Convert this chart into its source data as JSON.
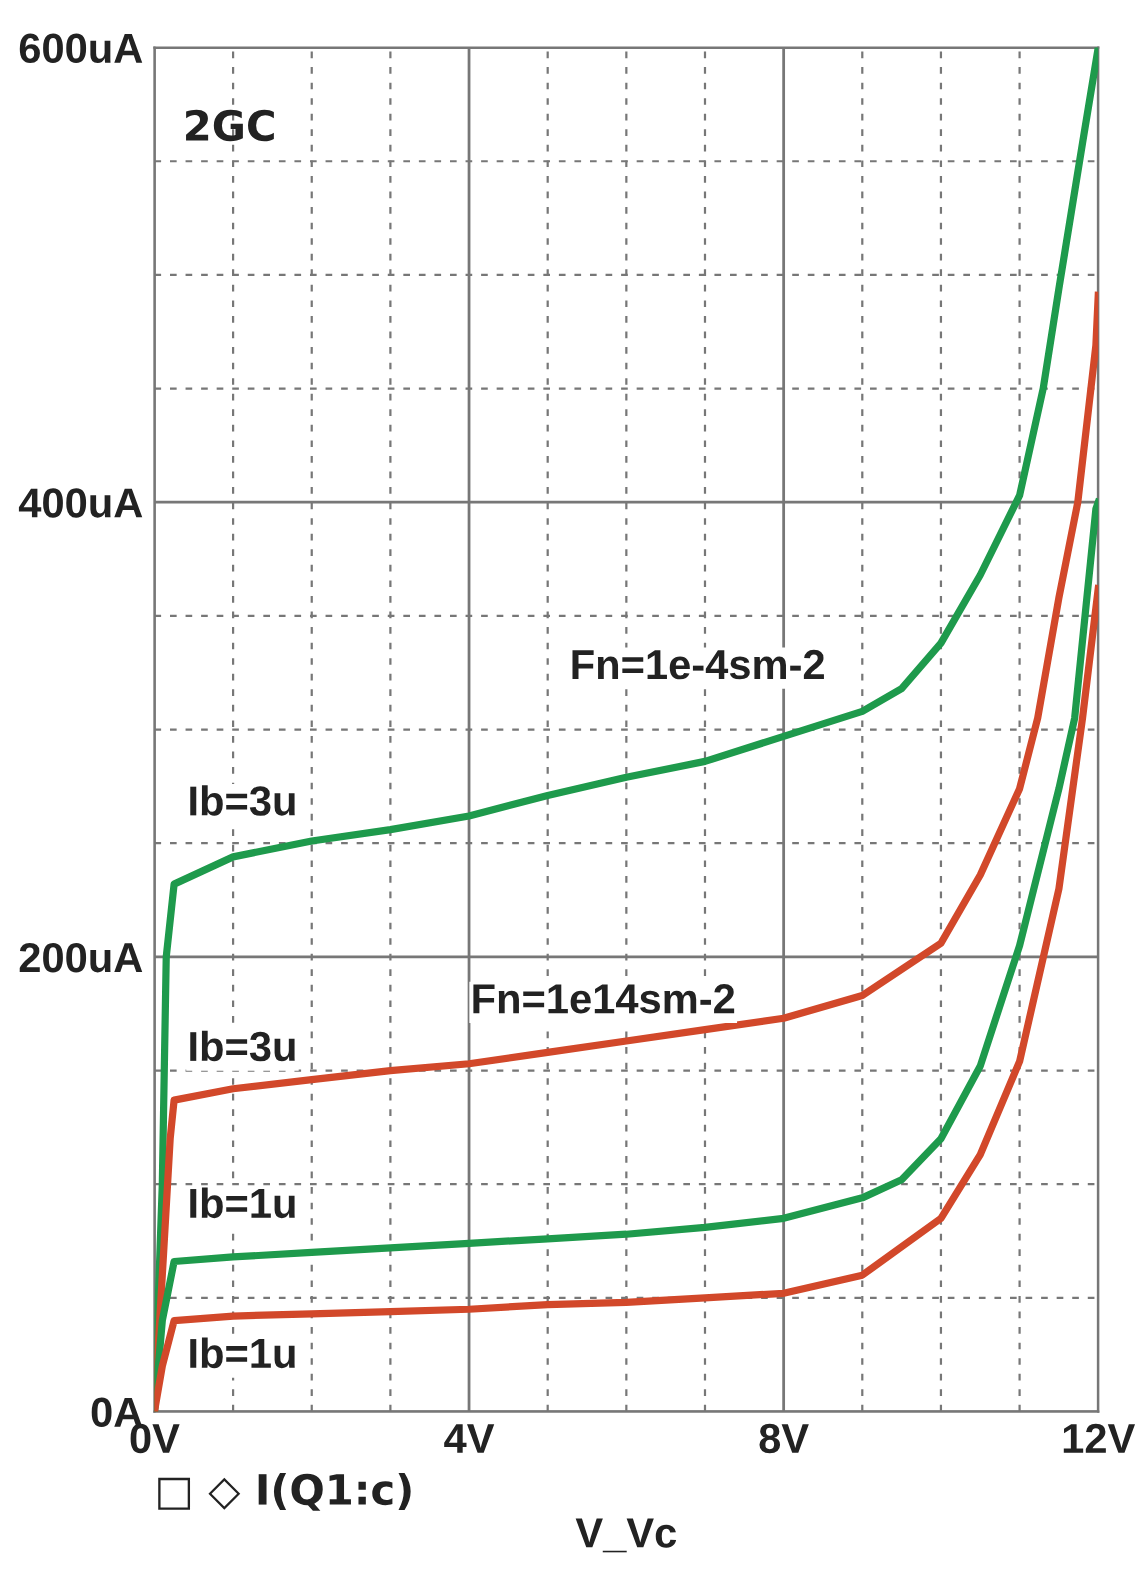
{
  "chart_data": {
    "type": "line",
    "xlabel": "V_Vc",
    "xlim": [
      0,
      12
    ],
    "ylim": [
      0,
      600
    ],
    "xticks": [
      {
        "value": 0,
        "label": "0V"
      },
      {
        "value": 1,
        "label": null
      },
      {
        "value": 2,
        "label": null
      },
      {
        "value": 3,
        "label": null
      },
      {
        "value": 4,
        "label": "4V"
      },
      {
        "value": 5,
        "label": null
      },
      {
        "value": 6,
        "label": null
      },
      {
        "value": 7,
        "label": null
      },
      {
        "value": 8,
        "label": "8V"
      },
      {
        "value": 9,
        "label": null
      },
      {
        "value": 10,
        "label": null
      },
      {
        "value": 11,
        "label": null
      },
      {
        "value": 12,
        "label": "12V"
      }
    ],
    "yticks": [
      {
        "value": 0,
        "label": "0A"
      },
      {
        "value": 50,
        "label": null
      },
      {
        "value": 100,
        "label": null
      },
      {
        "value": 150,
        "label": null
      },
      {
        "value": 200,
        "label": "200uA"
      },
      {
        "value": 250,
        "label": null
      },
      {
        "value": 300,
        "label": null
      },
      {
        "value": 350,
        "label": null
      },
      {
        "value": 400,
        "label": "400uA"
      },
      {
        "value": 450,
        "label": null
      },
      {
        "value": 500,
        "label": null
      },
      {
        "value": 550,
        "label": null
      },
      {
        "value": 600,
        "label": "600uA"
      }
    ],
    "grid": true,
    "marker": "none",
    "line_style": "solid",
    "series": [
      {
        "color": "#1e9a4c",
        "x": [
          0,
          0.1,
          0.15,
          0.25,
          1,
          2,
          3,
          4,
          5,
          6,
          7,
          8,
          9,
          9.5,
          10,
          10.5,
          11,
          11.3,
          11.5,
          11.8,
          12
        ],
        "values": [
          0,
          100,
          200,
          232,
          244,
          251,
          256,
          262,
          271,
          279,
          286,
          297,
          308,
          318,
          338,
          368,
          403,
          450,
          494,
          558,
          600
        ]
      },
      {
        "color": "#d2482a",
        "x": [
          0,
          0.1,
          0.2,
          0.25,
          1,
          2,
          3,
          4,
          5,
          6,
          7,
          8,
          9,
          10,
          10.5,
          11,
          11.23,
          11.5,
          11.74,
          11.97,
          12
        ],
        "values": [
          0,
          60,
          120,
          137,
          142,
          146,
          150,
          153,
          158,
          163,
          168,
          173,
          183,
          206,
          236,
          274,
          305,
          358,
          400,
          469,
          491
        ]
      },
      {
        "color": "#1e9a4c",
        "x": [
          0,
          0.1,
          0.25,
          1,
          2,
          3,
          4,
          5,
          6,
          7,
          8,
          9,
          9.5,
          10,
          10.5,
          11,
          11.5,
          11.7,
          11.97,
          12
        ],
        "values": [
          0,
          40,
          66,
          68,
          70,
          72,
          74,
          76,
          78,
          81,
          85,
          94,
          102,
          120,
          152,
          205,
          274,
          305,
          397,
          400
        ]
      },
      {
        "color": "#d2482a",
        "x": [
          0,
          0.1,
          0.25,
          1,
          2,
          3,
          4,
          5,
          6,
          7,
          8,
          9,
          10,
          10.5,
          11,
          11.5,
          11.8,
          12
        ],
        "values": [
          0,
          20,
          40,
          42,
          43,
          44,
          45,
          47,
          48,
          50,
          52,
          60,
          85,
          113,
          154,
          230,
          305,
          362
        ]
      }
    ],
    "annotations": [
      "2GC",
      "□ ◇ I(Q1:c)",
      "Fn=1e-4sm-2",
      "Fn=1e14sm-2",
      "Ib=3u",
      "Ib=3u",
      "Ib=1u",
      "Ib=1u"
    ]
  }
}
